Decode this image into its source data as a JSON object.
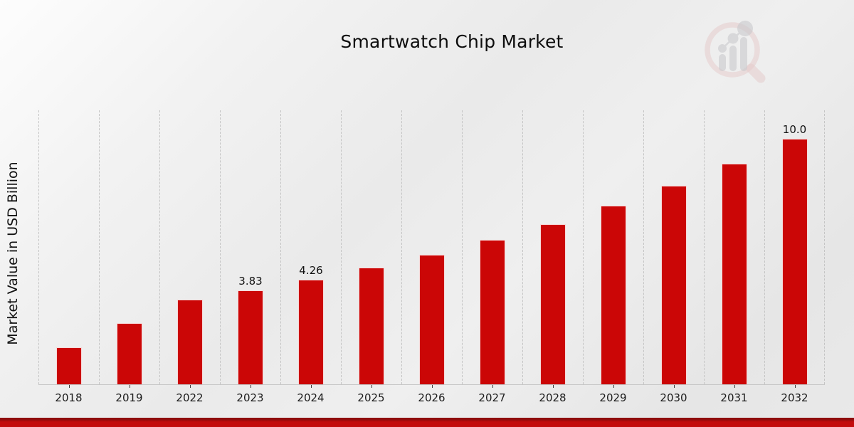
{
  "header": {
    "title": "Smartwatch Chip Market"
  },
  "colors": {
    "bar": "#cb0606",
    "gridline": "#c4c4c4",
    "axis_line": "#c6c6c6",
    "band_dark": "#8f0d0d",
    "band_main": "#c30c0c",
    "text": "#111111",
    "logo_ring_pink": "#dcaaaa",
    "logo_gray": "#a9a9b0"
  },
  "logo": {
    "name": "market-research-future-logo"
  },
  "chart_data": {
    "type": "bar",
    "title": "Smartwatch Chip Market",
    "xlabel": "",
    "ylabel": "Market Value in USD Billion",
    "categories": [
      "2018",
      "2019",
      "2022",
      "2023",
      "2024",
      "2025",
      "2026",
      "2027",
      "2028",
      "2029",
      "2030",
      "2031",
      "2032"
    ],
    "values": [
      1.5,
      2.5,
      3.45,
      3.83,
      4.26,
      4.74,
      5.27,
      5.87,
      6.53,
      7.27,
      8.08,
      8.99,
      10.0
    ],
    "bar_labels": [
      "",
      "",
      "",
      "3.83",
      "4.26",
      "",
      "",
      "",
      "",
      "",
      "",
      "",
      "10.0"
    ],
    "ylim": [
      0,
      11.2
    ],
    "grid": "vertical-dashed",
    "legend": "none",
    "bar_color": "#cb0606",
    "units": "USD Billion"
  }
}
